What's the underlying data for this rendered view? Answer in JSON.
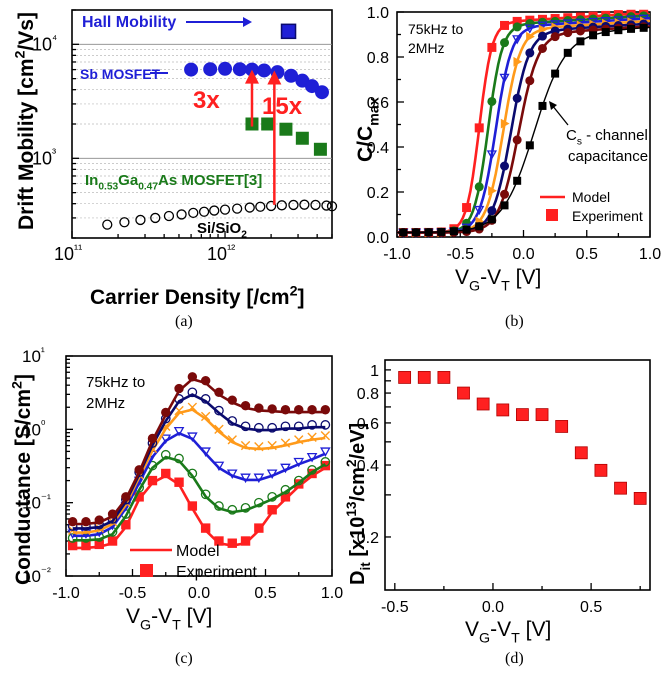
{
  "colors": {
    "blue": "#1f1fd6",
    "green": "#1a7a1a",
    "red": "#ff2020",
    "orange": "#ff9a1a",
    "navy": "#0a0a6e",
    "maroon": "#7a0a0a",
    "black": "#000000"
  },
  "chart_data": [
    {
      "id": "a",
      "caption": "(a)",
      "type": "scatter",
      "xlabel": "Carrier Density [/cm²]",
      "ylabel": "Drift Mobility [cm²/Vs]",
      "x_scale": "log",
      "y_scale": "log",
      "xlim": [
        100000000000.0,
        5000000000000.0
      ],
      "ylim": [
        200,
        20000
      ],
      "x_ticks": [
        "10¹¹",
        "10¹²"
      ],
      "y_ticks": [
        "10³",
        "10⁴"
      ],
      "annotations": [
        "Hall Mobility",
        "Sb MOSFET",
        "3x",
        "15x",
        "In0.53Ga0.47As MOSFET[3]",
        "Si/SiO2"
      ],
      "series": [
        {
          "name": "Hall Mobility",
          "marker": "square",
          "color": "#1f1fd6",
          "x": [
            2600000000000.0
          ],
          "y": [
            13000
          ]
        },
        {
          "name": "Sb MOSFET",
          "marker": "circle",
          "color": "#1f1fd6",
          "x": [
            600000000000.0,
            800000000000.0,
            1000000000000.0,
            1250000000000.0,
            1500000000000.0,
            1800000000000.0,
            2200000000000.0,
            2700000000000.0,
            3200000000000.0,
            3700000000000.0,
            4300000000000.0
          ],
          "y": [
            6000,
            6050,
            6100,
            6050,
            6000,
            5900,
            5700,
            5300,
            4800,
            4300,
            3800
          ]
        },
        {
          "name": "In0.53Ga0.47As MOSFET[3]",
          "marker": "square",
          "color": "#1a7a1a",
          "x": [
            1500000000000.0,
            1900000000000.0,
            2500000000000.0,
            3200000000000.0,
            4200000000000.0
          ],
          "y": [
            2000,
            2000,
            1800,
            1500,
            1200
          ]
        },
        {
          "name": "Si/SiO2",
          "marker": "open-circle",
          "color": "#000000",
          "x": [
            170000000000.0,
            220000000000.0,
            280000000000.0,
            350000000000.0,
            430000000000.0,
            520000000000.0,
            620000000000.0,
            730000000000.0,
            850000000000.0,
            1000000000000.0,
            1200000000000.0,
            1450000000000.0,
            1700000000000.0,
            2000000000000.0,
            2350000000000.0,
            2800000000000.0,
            3300000000000.0,
            3900000000000.0,
            4600000000000.0,
            5000000000000.0
          ],
          "y": [
            262,
            275,
            288,
            300,
            312,
            322,
            332,
            340,
            348,
            355,
            362,
            370,
            376,
            382,
            387,
            390,
            392,
            390,
            385,
            380
          ]
        }
      ]
    },
    {
      "id": "b",
      "caption": "(b)",
      "type": "line",
      "xlabel": "VG-VT [V]",
      "ylabel": "C/Cmax",
      "xlim": [
        -1.0,
        1.0
      ],
      "ylim": [
        0.0,
        1.0
      ],
      "x_ticks": [
        "-1.0",
        "-0.5",
        "0.0",
        "0.5",
        "1.0"
      ],
      "y_ticks": [
        "0.0",
        "0.2",
        "0.4",
        "0.6",
        "0.8",
        "1.0"
      ],
      "annotations": [
        "75kHz to 2MHz",
        "Cs - channel capacitance"
      ],
      "legend": [
        "Model",
        "Experiment"
      ],
      "series": [
        {
          "name": "75kHz",
          "color": "#ff2020",
          "marker": "square",
          "v0": -0.35,
          "k": 20,
          "top": 0.95
        },
        {
          "name": "",
          "color": "#1a7a1a",
          "marker": "circle",
          "v0": -0.28,
          "k": 18,
          "top": 0.94
        },
        {
          "name": "",
          "color": "#1f1fd6",
          "marker": "triangle-down",
          "v0": -0.22,
          "k": 16,
          "top": 0.93
        },
        {
          "name": "",
          "color": "#ff9a1a",
          "marker": "triangle-right",
          "v0": -0.16,
          "k": 15,
          "top": 0.92
        },
        {
          "name": "",
          "color": "#0a0a6e",
          "marker": "circle",
          "v0": -0.1,
          "k": 14,
          "top": 0.91
        },
        {
          "name": "2MHz",
          "color": "#7a0a0a",
          "marker": "circle",
          "v0": -0.04,
          "k": 13,
          "top": 0.9
        },
        {
          "name": "Cs - channel capacitance",
          "color": "#000000",
          "marker": "square",
          "v0": 0.08,
          "k": 8,
          "top": 0.9
        }
      ]
    },
    {
      "id": "c",
      "caption": "(c)",
      "type": "line",
      "xlabel": "VG-VT [V]",
      "ylabel": "Conductance [S/cm²]",
      "y_scale": "log",
      "xlim": [
        -1.0,
        1.0
      ],
      "ylim": [
        0.01,
        10
      ],
      "x_ticks": [
        "-1.0",
        "-0.5",
        "0.0",
        "0.5",
        "1.0"
      ],
      "y_ticks": [
        "10⁻²",
        "10⁻¹",
        "10⁰",
        "10¹"
      ],
      "annotations": [
        "75kHz to 2MHz"
      ],
      "legend": [
        "Model",
        "Experiment"
      ],
      "series": [
        {
          "name": "75kHz",
          "color": "#ff2020",
          "marker": "square",
          "x": [
            -0.95,
            -0.85,
            -0.75,
            -0.65,
            -0.55,
            -0.45,
            -0.35,
            -0.25,
            -0.15,
            -0.05,
            0.05,
            0.15,
            0.25,
            0.35,
            0.45,
            0.55,
            0.65,
            0.75,
            0.85,
            0.95
          ],
          "y": [
            0.026,
            0.026,
            0.027,
            0.03,
            0.05,
            0.12,
            0.2,
            0.25,
            0.19,
            0.09,
            0.045,
            0.03,
            0.028,
            0.03,
            0.045,
            0.08,
            0.12,
            0.18,
            0.25,
            0.32
          ]
        },
        {
          "name": "",
          "color": "#1a7a1a",
          "marker": "open-circle",
          "x": [
            -0.95,
            -0.85,
            -0.75,
            -0.65,
            -0.55,
            -0.45,
            -0.35,
            -0.25,
            -0.15,
            -0.05,
            0.05,
            0.15,
            0.25,
            0.35,
            0.45,
            0.55,
            0.65,
            0.75,
            0.85,
            0.95
          ],
          "y": [
            0.033,
            0.033,
            0.034,
            0.04,
            0.07,
            0.16,
            0.32,
            0.45,
            0.4,
            0.25,
            0.13,
            0.09,
            0.08,
            0.085,
            0.1,
            0.12,
            0.15,
            0.2,
            0.28,
            0.36
          ]
        },
        {
          "name": "",
          "color": "#1f1fd6",
          "marker": "triangle-down",
          "x": [
            -0.95,
            -0.85,
            -0.75,
            -0.65,
            -0.55,
            -0.45,
            -0.35,
            -0.25,
            -0.15,
            -0.05,
            0.05,
            0.15,
            0.25,
            0.35,
            0.45,
            0.55,
            0.65,
            0.75,
            0.85,
            0.95
          ],
          "y": [
            0.038,
            0.038,
            0.04,
            0.05,
            0.09,
            0.2,
            0.45,
            0.75,
            0.95,
            0.8,
            0.5,
            0.32,
            0.25,
            0.22,
            0.22,
            0.25,
            0.3,
            0.36,
            0.42,
            0.5
          ]
        },
        {
          "name": "",
          "color": "#ff9a1a",
          "marker": "cross",
          "x": [
            -0.95,
            -0.85,
            -0.75,
            -0.65,
            -0.55,
            -0.45,
            -0.35,
            -0.25,
            -0.15,
            -0.05,
            0.05,
            0.15,
            0.25,
            0.35,
            0.45,
            0.55,
            0.65,
            0.75,
            0.85,
            0.95
          ],
          "y": [
            0.042,
            0.042,
            0.045,
            0.055,
            0.1,
            0.24,
            0.55,
            1.1,
            1.8,
            2.0,
            1.5,
            1.0,
            0.72,
            0.6,
            0.58,
            0.6,
            0.65,
            0.72,
            0.78,
            0.82
          ]
        },
        {
          "name": "",
          "color": "#0a0a6e",
          "marker": "open-circle",
          "x": [
            -0.95,
            -0.85,
            -0.75,
            -0.65,
            -0.55,
            -0.45,
            -0.35,
            -0.25,
            -0.15,
            -0.05,
            0.05,
            0.15,
            0.25,
            0.35,
            0.45,
            0.55,
            0.65,
            0.75,
            0.85,
            0.95
          ],
          "y": [
            0.048,
            0.048,
            0.05,
            0.06,
            0.11,
            0.26,
            0.65,
            1.4,
            2.6,
            3.2,
            2.6,
            1.8,
            1.3,
            1.1,
            1.05,
            1.05,
            1.1,
            1.1,
            1.15,
            1.15
          ]
        },
        {
          "name": "2MHz",
          "color": "#7a0a0a",
          "marker": "circle",
          "x": [
            -0.95,
            -0.85,
            -0.75,
            -0.65,
            -0.55,
            -0.45,
            -0.35,
            -0.25,
            -0.15,
            -0.05,
            0.05,
            0.15,
            0.25,
            0.35,
            0.45,
            0.55,
            0.65,
            0.75,
            0.85,
            0.95
          ],
          "y": [
            0.055,
            0.055,
            0.058,
            0.07,
            0.12,
            0.28,
            0.75,
            1.7,
            3.6,
            5.2,
            4.6,
            3.2,
            2.5,
            2.1,
            1.95,
            1.9,
            1.85,
            1.85,
            1.85,
            1.85
          ]
        }
      ]
    },
    {
      "id": "d",
      "caption": "(d)",
      "type": "scatter",
      "xlabel": "VG-VT [V]",
      "ylabel": "Dit [x10¹³/cm²/eV]",
      "y_scale": "log",
      "xlim": [
        -0.55,
        0.8
      ],
      "ylim": [
        0.12,
        1.1
      ],
      "x_ticks": [
        "-0.5",
        "0.0",
        "0.5"
      ],
      "y_ticks": [
        "0.2",
        "0.4",
        "0.6",
        "0.8",
        "1"
      ],
      "series": [
        {
          "name": "",
          "color": "#ff2020",
          "marker": "square",
          "x": [
            -0.45,
            -0.35,
            -0.25,
            -0.15,
            -0.05,
            0.05,
            0.15,
            0.25,
            0.35,
            0.45,
            0.55,
            0.65,
            0.75
          ],
          "y": [
            0.93,
            0.93,
            0.93,
            0.8,
            0.72,
            0.68,
            0.65,
            0.65,
            0.58,
            0.45,
            0.38,
            0.32,
            0.29
          ]
        }
      ]
    }
  ]
}
